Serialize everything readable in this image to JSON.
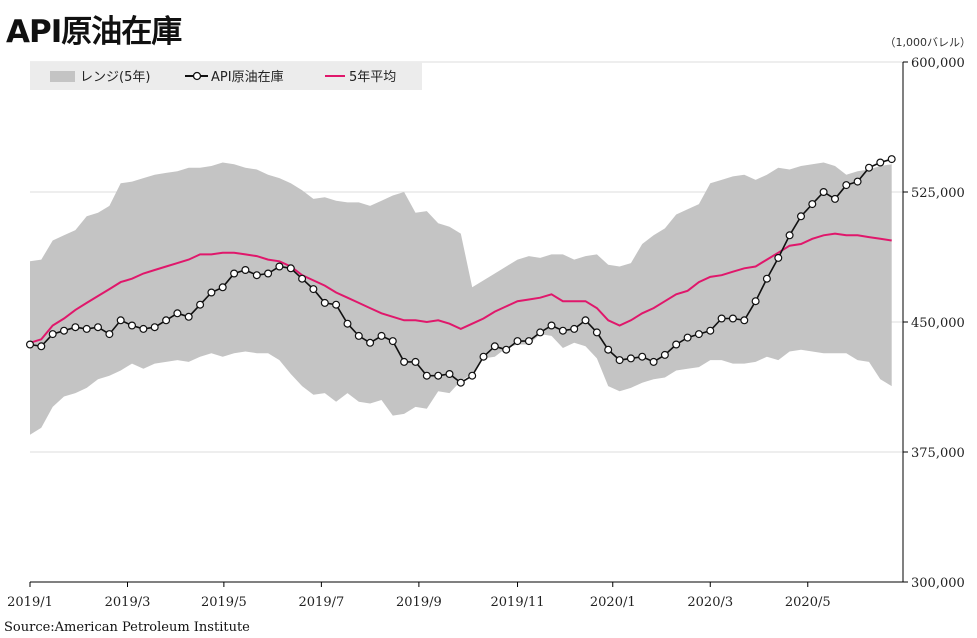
{
  "header": {
    "title": "API原油在庫",
    "unit": "（1,000バレル）",
    "source": "Source:American Petroleum Institute"
  },
  "colors": {
    "range": "#c4c4c4",
    "stock": "#111111",
    "avg": "#e0176b",
    "grid": "#dddddd"
  },
  "chart_data": {
    "type": "line",
    "title": "API原油在庫",
    "ylabel": "",
    "xlabel": "",
    "ylim": [
      300000,
      600000
    ],
    "yticks": [
      300000,
      375000,
      450000,
      525000,
      600000
    ],
    "ytick_labels": [
      "300,000",
      "375,000",
      "450,000",
      "525,000",
      "600,000"
    ],
    "xlim": [
      0,
      77
    ],
    "xticks": [
      0,
      8.6,
      17.1,
      25.7,
      34.3,
      43,
      51.4,
      60,
      68.6
    ],
    "xtick_labels": [
      "2019/1",
      "2019/3",
      "2019/5",
      "2019/7",
      "2019/9",
      "2019/11",
      "2020/1",
      "2020/3",
      "2020/5"
    ],
    "grid": true,
    "legend": {
      "position": "top-left",
      "entries": [
        "レンジ(5年)",
        "API原油在庫",
        "5年平均"
      ]
    },
    "series": [
      {
        "name": "API原油在庫",
        "values": [
          437000,
          436000,
          443000,
          445000,
          447000,
          446000,
          447000,
          443000,
          451000,
          448000,
          446000,
          447000,
          451000,
          455000,
          453000,
          460000,
          467000,
          470000,
          478000,
          480000,
          477000,
          478000,
          482000,
          481000,
          475000,
          469000,
          461000,
          460000,
          449000,
          442000,
          438000,
          442000,
          439000,
          427000,
          427000,
          419000,
          419000,
          420000,
          415000,
          419000,
          430000,
          436000,
          434000,
          439000,
          439000,
          444000,
          448000,
          445000,
          446000,
          451000,
          444000,
          434000,
          428000,
          429000,
          430000,
          427000,
          431000,
          437000,
          441000,
          443000,
          445000,
          452000,
          452000,
          451000,
          462000,
          475000,
          487000,
          500000,
          511000,
          518000,
          525000,
          521000,
          529000,
          531000,
          539000,
          542000,
          544000
        ]
      },
      {
        "name": "5年平均",
        "values": [
          438000,
          440000,
          448000,
          452000,
          457000,
          461000,
          465000,
          469000,
          473000,
          475000,
          478000,
          480000,
          482000,
          484000,
          486000,
          489000,
          489000,
          490000,
          490000,
          489000,
          488000,
          486000,
          485000,
          482000,
          477000,
          474000,
          471000,
          467000,
          464000,
          461000,
          458000,
          455000,
          453000,
          451000,
          451000,
          450000,
          451000,
          449000,
          446000,
          449000,
          452000,
          456000,
          459000,
          462000,
          463000,
          464000,
          466000,
          462000,
          462000,
          462000,
          458000,
          451000,
          448000,
          451000,
          455000,
          458000,
          462000,
          466000,
          468000,
          473000,
          476000,
          477000,
          479000,
          481000,
          482000,
          486000,
          490000,
          494000,
          495000,
          498000,
          500000,
          501000,
          500000,
          500000,
          499000,
          498000,
          497000
        ]
      },
      {
        "name": "レンジ上限",
        "values": [
          485000,
          486000,
          497000,
          500000,
          503000,
          511000,
          513000,
          517000,
          530000,
          531000,
          533000,
          535000,
          536000,
          537000,
          539000,
          539000,
          540000,
          542000,
          541000,
          539000,
          538000,
          535000,
          533000,
          530000,
          526000,
          521000,
          522000,
          520000,
          519000,
          519000,
          517000,
          520000,
          523000,
          525000,
          513000,
          514000,
          507000,
          505000,
          501000,
          470000,
          474000,
          478000,
          482000,
          486000,
          488000,
          487000,
          489000,
          489000,
          486000,
          488000,
          489000,
          483000,
          482000,
          484000,
          495000,
          500000,
          504000,
          512000,
          515000,
          518000,
          530000,
          532000,
          534000,
          535000,
          532000,
          535000,
          539000,
          538000,
          540000,
          541000,
          542000,
          540000,
          535000,
          537000,
          538000,
          540000,
          541000
        ]
      },
      {
        "name": "レンジ下限",
        "values": [
          385000,
          389000,
          401000,
          407000,
          409000,
          412000,
          417000,
          419000,
          422000,
          426000,
          423000,
          426000,
          427000,
          428000,
          427000,
          430000,
          432000,
          430000,
          432000,
          433000,
          432000,
          432000,
          428000,
          420000,
          413000,
          408000,
          409000,
          404000,
          409000,
          404000,
          403000,
          405000,
          396000,
          397000,
          401000,
          400000,
          410000,
          409000,
          416000,
          420000,
          429000,
          430000,
          435000,
          437000,
          437000,
          443000,
          442000,
          435000,
          438000,
          436000,
          429000,
          413000,
          410000,
          412000,
          415000,
          417000,
          418000,
          422000,
          423000,
          424000,
          428000,
          428000,
          426000,
          426000,
          427000,
          430000,
          428000,
          433000,
          434000,
          433000,
          432000,
          432000,
          432000,
          428000,
          427000,
          417000,
          413000
        ]
      }
    ]
  }
}
